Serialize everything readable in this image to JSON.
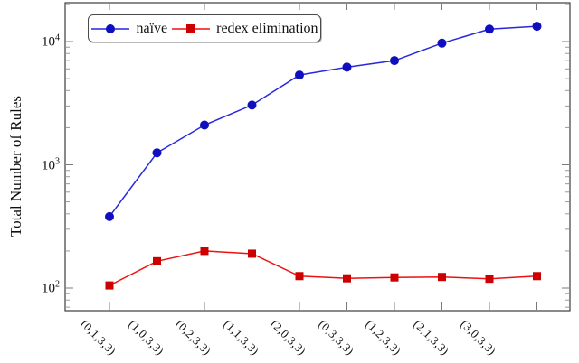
{
  "figure": {
    "y_axis_title": "Total Number of Rules"
  },
  "chart_data": {
    "type": "line",
    "title": "",
    "xlabel": "",
    "ylabel": "Total Number of Rules",
    "x_scale": "categorical",
    "y_scale": "log10",
    "ylim": [
      66,
      21000
    ],
    "y_major_ticks": [
      100,
      1000,
      10000
    ],
    "grid": "off",
    "legend_position": "top-left-inside",
    "categories": [
      "(0,1,3,3)",
      "(1,0,3,3)",
      "(0,2,3,3)",
      "(1,1,3,3)",
      "(2,0,3,3)",
      "(0,3,3,3)",
      "(1,2,3,3)",
      "(2,1,3,3)",
      "(3,0,3,3)"
    ],
    "note_last_tick_unlabeled": true,
    "series": [
      {
        "name": "naïve",
        "marker": "circle",
        "line_color": "#2727dd",
        "marker_color": "#0f0fbf",
        "values": [
          380,
          1250,
          2100,
          3050,
          5350,
          6200,
          7000,
          9700,
          12600,
          13300
        ]
      },
      {
        "name": "redex elimination",
        "marker": "square",
        "line_color": "#ee1111",
        "marker_color": "#cc0000",
        "values": [
          105,
          165,
          200,
          190,
          125,
          120,
          122,
          123,
          119,
          125
        ]
      }
    ],
    "colors": {
      "frame": "#3d3d3d",
      "major_tick": "#7a7a7a",
      "minor_tick": "#9a9a9a",
      "text": "#111111"
    }
  }
}
